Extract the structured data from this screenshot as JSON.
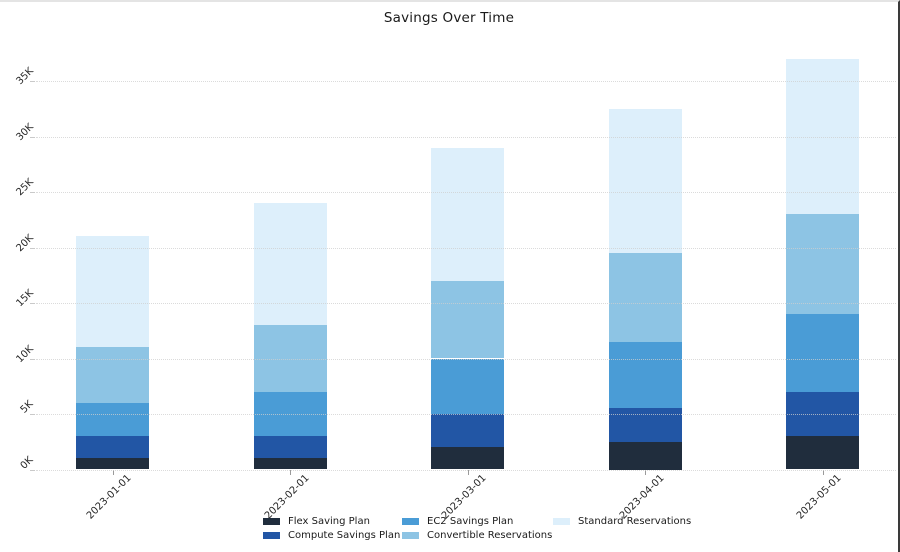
{
  "chart_data": {
    "type": "bar",
    "stacked": true,
    "title": "Savings Over Time",
    "categories": [
      "2023-01-01",
      "2023-02-01",
      "2023-03-01",
      "2023-04-01",
      "2023-05-01"
    ],
    "series": [
      {
        "name": "Flex Saving Plan",
        "color": "#202d3d",
        "values": [
          1000,
          1000,
          2000,
          2500,
          3000
        ]
      },
      {
        "name": "Compute Savings Plan",
        "color": "#2256a5",
        "values": [
          2000,
          2000,
          3000,
          3000,
          4000
        ]
      },
      {
        "name": "EC2 Savings Plan",
        "color": "#4a9cd6",
        "values": [
          3000,
          4000,
          5000,
          6000,
          7000
        ]
      },
      {
        "name": "Convertible Reservations",
        "color": "#8dc4e4",
        "values": [
          5000,
          6000,
          7000,
          8000,
          9000
        ]
      },
      {
        "name": "Standard Reservations",
        "color": "#ddeffb",
        "values": [
          10000,
          11000,
          12000,
          13000,
          14000
        ]
      }
    ],
    "stack_totals": [
      21000,
      24000,
      29000,
      32500,
      37000
    ],
    "y_axis": {
      "ticks": [
        {
          "label": "0K",
          "value": 0
        },
        {
          "label": "5K",
          "value": 5000
        },
        {
          "label": "10K",
          "value": 10000
        },
        {
          "label": "15K",
          "value": 15000
        },
        {
          "label": "20K",
          "value": 20000
        },
        {
          "label": "25K",
          "value": 25000
        },
        {
          "label": "30K",
          "value": 30000
        },
        {
          "label": "35K",
          "value": 35000
        }
      ],
      "ylim": [
        0,
        38500
      ]
    },
    "xlabel": "",
    "ylabel": "",
    "grid": "horizontal-dotted",
    "grid_above_bars": true,
    "tick_label_rotation_deg": 45,
    "legend_position": "bottom",
    "legend_columns": [
      [
        0,
        1
      ],
      [
        2,
        3
      ],
      [
        4
      ]
    ],
    "background_color": "#ffffff",
    "text_color": "#262626"
  }
}
